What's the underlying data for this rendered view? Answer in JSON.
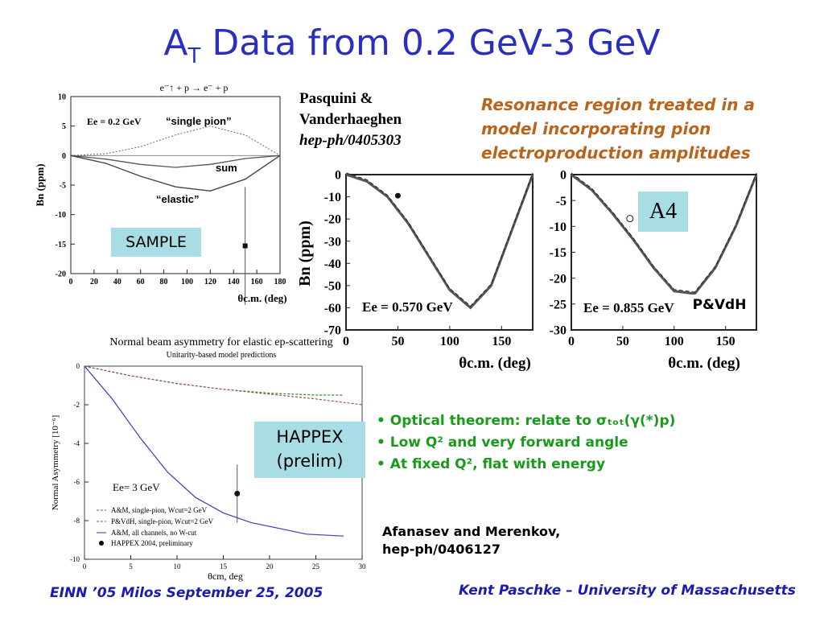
{
  "title": {
    "main": "A",
    "sub": "T",
    "rest": " Data from 0.2 GeV-3 GeV"
  },
  "notes": {
    "resonance": [
      "Resonance region treated in a",
      "model incorporating pion",
      "electroproduction amplitudes"
    ],
    "authors_line1": "Pasquini &",
    "authors_line2": "Vanderhaeghen",
    "authors_ref": "hep-ph/0405303",
    "afanasev": "Afanasev and Merenkov,",
    "afanasev_ref": "hep-ph/0406127",
    "bullets": [
      "Optical theorem: relate to σₜₒₜ(γ(*)p)",
      "Low Q² and very forward angle",
      "At fixed Q², flat with energy"
    ]
  },
  "boxes": {
    "sample": "SAMPLE",
    "a4": "A4",
    "pvdh": "P&VdH",
    "happex_line1": "HAPPEX",
    "happex_line2": "(prelim)"
  },
  "footer": {
    "left": "EINN ’05  Milos  September 25, 2005",
    "right": "Kent Paschke – University of Massachusetts"
  },
  "chart_data": [
    {
      "type": "line",
      "title": "e⁻↑ + p → e⁻ + p",
      "ylabel": "Bn (ppm)",
      "xlabel": "θc.m. (deg)",
      "xlim": [
        0,
        180
      ],
      "ylim": [
        -20,
        10
      ],
      "x_ticks": [
        0,
        20,
        40,
        60,
        80,
        100,
        120,
        140,
        160,
        180
      ],
      "y_ticks": [
        10,
        5,
        0,
        -5,
        -10,
        -15,
        -20
      ],
      "annotations": [
        "Ee = 0.2 GeV",
        "“single pion”",
        "sum",
        "“elastic”"
      ],
      "series": [
        {
          "name": "“single pion”",
          "x": [
            0,
            30,
            60,
            90,
            120,
            150,
            180
          ],
          "y": [
            0,
            0.3,
            1.5,
            3.5,
            5,
            3.5,
            0
          ]
        },
        {
          "name": "sum",
          "x": [
            0,
            30,
            60,
            90,
            120,
            150,
            180
          ],
          "y": [
            0,
            -0.6,
            -1.5,
            -2,
            -1.5,
            -0.5,
            0
          ]
        },
        {
          "name": "“elastic”",
          "x": [
            0,
            30,
            60,
            90,
            120,
            150,
            180
          ],
          "y": [
            0,
            -1.3,
            -3.5,
            -5.3,
            -6,
            -4,
            0
          ]
        }
      ],
      "points": [
        {
          "x": 150,
          "y": -15.3,
          "err": 10
        }
      ]
    },
    {
      "type": "line",
      "ylabel": "Bn (ppm)",
      "xlabel": "θc.m. (deg)",
      "xlim": [
        0,
        180
      ],
      "ylim": [
        -70,
        0
      ],
      "x_ticks": [
        0,
        50,
        100,
        150
      ],
      "y_ticks": [
        0,
        -10,
        -20,
        -30,
        -40,
        -50,
        -60,
        -70
      ],
      "annotations": [
        "Ee = 0.570 GeV"
      ],
      "series": [
        {
          "x": [
            0,
            20,
            40,
            60,
            80,
            100,
            120,
            140,
            160,
            180
          ],
          "y": [
            0,
            -3,
            -10,
            -22,
            -37,
            -52,
            -60,
            -50,
            -25,
            0
          ]
        }
      ],
      "points": [
        {
          "x": 50,
          "y": -9.5
        }
      ]
    },
    {
      "type": "line",
      "ylabel": "Bn (ppm)",
      "xlabel": "θc.m. (deg)",
      "xlim": [
        0,
        180
      ],
      "ylim": [
        -30,
        0
      ],
      "x_ticks": [
        0,
        50,
        100,
        150
      ],
      "y_ticks": [
        0,
        -5,
        -10,
        -15,
        -20,
        -25,
        -30
      ],
      "annotations": [
        "Ee = 0.855 GeV"
      ],
      "series": [
        {
          "x": [
            0,
            20,
            40,
            60,
            80,
            100,
            120,
            140,
            160,
            180
          ],
          "y": [
            0,
            -3,
            -7.5,
            -12.5,
            -18,
            -22.5,
            -23,
            -18,
            -10,
            0
          ]
        }
      ],
      "points": [
        {
          "x": 57,
          "y": -8.5
        }
      ]
    },
    {
      "type": "line",
      "title": "Normal beam asymmetry for elastic ep-scattering",
      "subtitle": "Unitarity-based model predictions",
      "ylabel": "Normal Asymmetry [10⁻⁶]",
      "xlabel": "θcm, deg",
      "xlim": [
        0,
        30
      ],
      "ylim": [
        -10,
        0
      ],
      "x_ticks": [
        0,
        5,
        10,
        15,
        20,
        25,
        30
      ],
      "y_ticks": [
        0,
        -2,
        -4,
        -6,
        -8,
        -10
      ],
      "annotations": [
        "Ee= 3 GeV"
      ],
      "series": [
        {
          "name": "A&M, single-pion, Wcut=2 GeV",
          "color": "#2e8b2e",
          "x": [
            0,
            5,
            10,
            15,
            20,
            25,
            28
          ],
          "y": [
            0,
            -0.5,
            -0.9,
            -1.2,
            -1.4,
            -1.5,
            -1.5
          ]
        },
        {
          "name": "P&VdH, single-pion, Wcut=2 GeV",
          "color": "#a05050",
          "x": [
            0,
            5,
            10,
            15,
            20,
            25,
            30
          ],
          "y": [
            0,
            -0.5,
            -0.9,
            -1.2,
            -1.45,
            -1.7,
            -2.0
          ]
        },
        {
          "name": "A&M, all channels, no W-cut",
          "color": "#3a3ab8",
          "x": [
            0,
            3,
            6,
            9,
            12,
            15,
            18,
            21,
            24,
            28
          ],
          "y": [
            0,
            -1.7,
            -3.7,
            -5.5,
            -6.8,
            -7.6,
            -8.1,
            -8.4,
            -8.7,
            -8.8
          ]
        }
      ],
      "points": [
        {
          "name": "HAPPEX 2004, preliminary",
          "x": 16.5,
          "y": -6.6,
          "err": 1.5
        }
      ]
    }
  ]
}
